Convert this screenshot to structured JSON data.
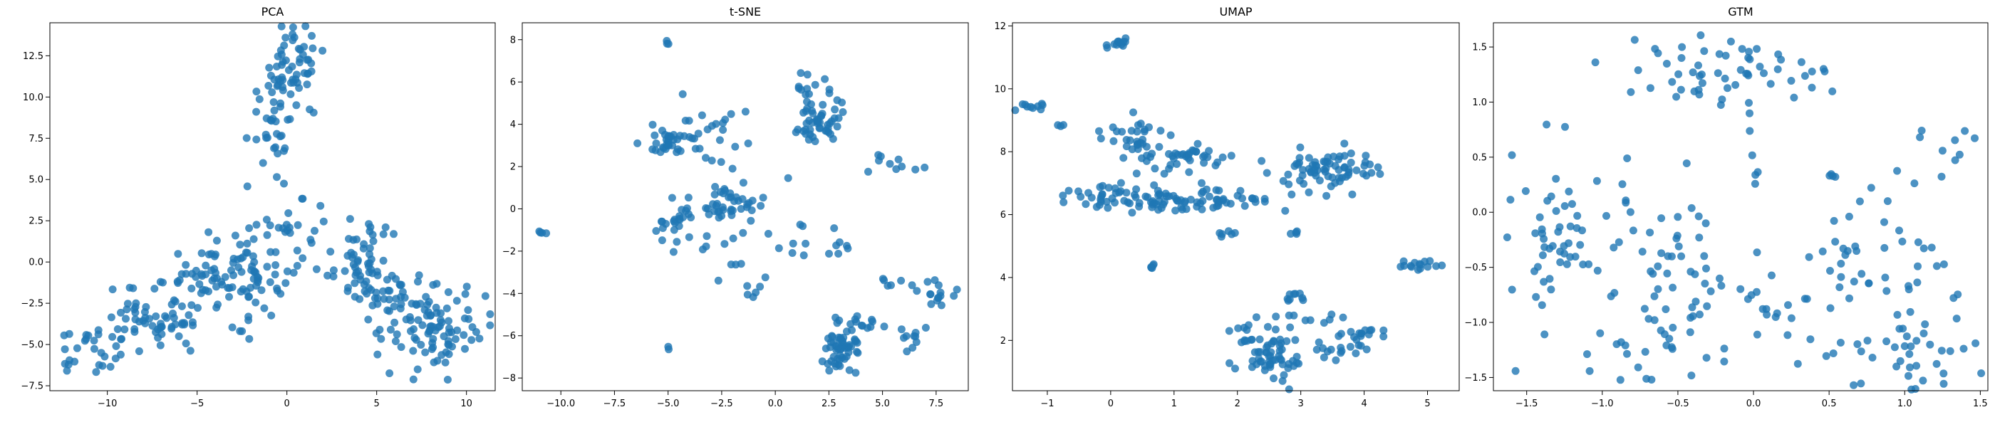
{
  "chart_data": [
    {
      "type": "scatter",
      "title": "PCA",
      "xlabel": "",
      "ylabel": "",
      "xlim": [
        -13.2,
        11.6
      ],
      "ylim": [
        -7.8,
        14.5
      ],
      "xticks": [
        -10,
        -5,
        0,
        5,
        10
      ],
      "yticks": [
        -7.5,
        -5.0,
        -2.5,
        0.0,
        2.5,
        5.0,
        7.5,
        10.0,
        12.5
      ],
      "ytick_labels": [
        "−7.5",
        "−5.0",
        "−2.5",
        "0.0",
        "2.5",
        "5.0",
        "7.5",
        "10.0",
        "12.5"
      ],
      "xtick_labels": [
        "−10",
        "−5",
        "0",
        "5",
        "10"
      ],
      "color": "#1f77b4",
      "clusters": [
        {
          "cx": 0.3,
          "cy": 12.0,
          "sx": 0.9,
          "sy": 1.3,
          "n": 50
        },
        {
          "cx": -0.6,
          "cy": 9.0,
          "sx": 0.8,
          "sy": 1.6,
          "n": 40
        },
        {
          "cx": 0.3,
          "cy": 1.8,
          "sx": 1.0,
          "sy": 1.0,
          "n": 25
        },
        {
          "cx": -3.5,
          "cy": -1.2,
          "sx": 1.6,
          "sy": 1.1,
          "n": 90
        },
        {
          "cx": -7.5,
          "cy": -3.8,
          "sx": 1.6,
          "sy": 1.0,
          "n": 60
        },
        {
          "cx": -11.0,
          "cy": -5.3,
          "sx": 0.8,
          "sy": 0.7,
          "n": 25
        },
        {
          "cx": 4.5,
          "cy": 0.0,
          "sx": 1.3,
          "sy": 1.3,
          "n": 60
        },
        {
          "cx": 8.3,
          "cy": -4.0,
          "sx": 1.4,
          "sy": 1.2,
          "n": 90
        },
        {
          "cx": 6.0,
          "cy": -2.2,
          "sx": 0.9,
          "sy": 0.8,
          "n": 25
        },
        {
          "cx": -1.0,
          "cy": 0.0,
          "sx": 1.5,
          "sy": 0.7,
          "n": 15
        }
      ]
    },
    {
      "type": "scatter",
      "title": "t-SNE",
      "xlabel": "",
      "ylabel": "",
      "xlim": [
        -11.8,
        9.0
      ],
      "ylim": [
        -8.6,
        8.8
      ],
      "xticks": [
        -10.0,
        -7.5,
        -5.0,
        -2.5,
        0.0,
        2.5,
        5.0,
        7.5
      ],
      "xtick_labels": [
        "−10.0",
        "−7.5",
        "−5.0",
        "−2.5",
        "0.0",
        "2.5",
        "5.0",
        "7.5"
      ],
      "yticks": [
        -8,
        -6,
        -4,
        -2,
        0,
        2,
        4,
        6,
        8
      ],
      "ytick_labels": [
        "−8",
        "−6",
        "−4",
        "−2",
        "0",
        "2",
        "4",
        "6",
        "8"
      ],
      "color": "#1f77b4",
      "clusters": [
        {
          "cx": -10.8,
          "cy": -1.15,
          "sx": 0.2,
          "sy": 0.1,
          "n": 4
        },
        {
          "cx": -5.0,
          "cy": 7.9,
          "sx": 0.05,
          "sy": 0.1,
          "n": 3
        },
        {
          "cx": -5.0,
          "cy": 3.2,
          "sx": 0.6,
          "sy": 0.4,
          "n": 30
        },
        {
          "cx": -3.0,
          "cy": 3.5,
          "sx": 1.0,
          "sy": 0.9,
          "n": 25
        },
        {
          "cx": -4.5,
          "cy": -0.8,
          "sx": 0.7,
          "sy": 0.5,
          "n": 25
        },
        {
          "cx": -2.0,
          "cy": 0.2,
          "sx": 0.6,
          "sy": 0.5,
          "n": 35
        },
        {
          "cx": -2.5,
          "cy": -1.8,
          "sx": 1.2,
          "sy": 1.0,
          "n": 15
        },
        {
          "cx": 2.2,
          "cy": 4.1,
          "sx": 0.5,
          "sy": 0.5,
          "n": 45
        },
        {
          "cx": 1.8,
          "cy": 5.5,
          "sx": 0.6,
          "sy": 0.5,
          "n": 15
        },
        {
          "cx": 5.5,
          "cy": 2.1,
          "sx": 0.6,
          "sy": 0.3,
          "n": 10
        },
        {
          "cx": 3.1,
          "cy": -6.5,
          "sx": 0.4,
          "sy": 0.6,
          "n": 55
        },
        {
          "cx": 4.0,
          "cy": -5.5,
          "sx": 0.5,
          "sy": 0.3,
          "n": 12
        },
        {
          "cx": 7.5,
          "cy": -4.0,
          "sx": 0.4,
          "sy": 0.3,
          "n": 15
        },
        {
          "cx": 6.5,
          "cy": -6.0,
          "sx": 0.3,
          "sy": 0.4,
          "n": 10
        },
        {
          "cx": 5.5,
          "cy": -3.5,
          "sx": 0.4,
          "sy": 0.2,
          "n": 6
        },
        {
          "cx": 0.5,
          "cy": -1.5,
          "sx": 1.3,
          "sy": 1.5,
          "n": 12
        },
        {
          "cx": -1.0,
          "cy": -4.0,
          "sx": 0.5,
          "sy": 0.2,
          "n": 4
        },
        {
          "cx": -5.0,
          "cy": -6.6,
          "sx": 0.05,
          "sy": 0.05,
          "n": 2
        },
        {
          "cx": 3.0,
          "cy": -1.8,
          "sx": 0.2,
          "sy": 0.4,
          "n": 6
        }
      ]
    },
    {
      "type": "scatter",
      "title": "UMAP",
      "xlabel": "",
      "ylabel": "",
      "xlim": [
        -1.55,
        5.5
      ],
      "ylim": [
        0.4,
        12.1
      ],
      "xticks": [
        -1,
        0,
        1,
        2,
        3,
        4,
        5
      ],
      "xtick_labels": [
        "−1",
        "0",
        "1",
        "2",
        "3",
        "4",
        "5"
      ],
      "yticks": [
        2,
        4,
        6,
        8,
        10,
        12
      ],
      "ytick_labels": [
        "2",
        "4",
        "6",
        "8",
        "10",
        "12"
      ],
      "color": "#1f77b4",
      "clusters": [
        {
          "cx": 0.1,
          "cy": 11.4,
          "sx": 0.12,
          "sy": 0.08,
          "n": 12
        },
        {
          "cx": -1.2,
          "cy": 9.45,
          "sx": 0.12,
          "sy": 0.08,
          "n": 10
        },
        {
          "cx": -0.8,
          "cy": 8.85,
          "sx": 0.03,
          "sy": 0.03,
          "n": 3
        },
        {
          "cx": 0.3,
          "cy": 8.3,
          "sx": 0.25,
          "sy": 0.35,
          "n": 35
        },
        {
          "cx": -0.1,
          "cy": 6.6,
          "sx": 0.35,
          "sy": 0.2,
          "n": 35
        },
        {
          "cx": 1.3,
          "cy": 6.4,
          "sx": 0.55,
          "sy": 0.2,
          "n": 70
        },
        {
          "cx": 1.2,
          "cy": 7.8,
          "sx": 0.4,
          "sy": 0.3,
          "n": 35
        },
        {
          "cx": 0.65,
          "cy": 4.4,
          "sx": 0.05,
          "sy": 0.05,
          "n": 5
        },
        {
          "cx": 1.85,
          "cy": 5.4,
          "sx": 0.1,
          "sy": 0.1,
          "n": 6
        },
        {
          "cx": 3.4,
          "cy": 7.4,
          "sx": 0.4,
          "sy": 0.35,
          "n": 70
        },
        {
          "cx": 2.9,
          "cy": 5.4,
          "sx": 0.06,
          "sy": 0.06,
          "n": 4
        },
        {
          "cx": 2.5,
          "cy": 1.6,
          "sx": 0.3,
          "sy": 0.6,
          "n": 70
        },
        {
          "cx": 2.85,
          "cy": 3.4,
          "sx": 0.15,
          "sy": 0.3,
          "n": 10
        },
        {
          "cx": 3.5,
          "cy": 1.7,
          "sx": 0.25,
          "sy": 0.15,
          "n": 15
        },
        {
          "cx": 4.0,
          "cy": 2.2,
          "sx": 0.25,
          "sy": 0.12,
          "n": 15
        },
        {
          "cx": 3.4,
          "cy": 2.6,
          "sx": 0.2,
          "sy": 0.1,
          "n": 6
        },
        {
          "cx": 4.9,
          "cy": 4.4,
          "sx": 0.2,
          "sy": 0.07,
          "n": 15
        }
      ]
    },
    {
      "type": "scatter",
      "title": "GTM",
      "xlabel": "",
      "ylabel": "",
      "xlim": [
        -1.72,
        1.55
      ],
      "ylim": [
        -1.62,
        1.72
      ],
      "xticks": [
        -1.5,
        -1.0,
        -0.5,
        0.0,
        0.5,
        1.0,
        1.5
      ],
      "xtick_labels": [
        "−1.5",
        "−1.0",
        "−0.5",
        "0.0",
        "0.5",
        "1.0",
        "1.5"
      ],
      "yticks": [
        -1.5,
        -1.0,
        -0.5,
        0.0,
        0.5,
        1.0,
        1.5
      ],
      "ytick_labels": [
        "−1.5",
        "−1.0",
        "−0.5",
        "0.0",
        "0.5",
        "1.0",
        "1.5"
      ],
      "color": "#1f77b4",
      "clusters": [
        {
          "cx": -0.25,
          "cy": 1.25,
          "sx": 0.35,
          "sy": 0.17,
          "n": 55
        },
        {
          "cx": -1.3,
          "cy": -0.35,
          "sx": 0.15,
          "sy": 0.35,
          "n": 45
        },
        {
          "cx": -1.0,
          "cy": 0.0,
          "sx": 0.2,
          "sy": 0.3,
          "n": 15
        },
        {
          "cx": -0.5,
          "cy": -0.3,
          "sx": 0.15,
          "sy": 0.3,
          "n": 25
        },
        {
          "cx": -0.7,
          "cy": -1.1,
          "sx": 0.25,
          "sy": 0.25,
          "n": 35
        },
        {
          "cx": -0.1,
          "cy": -0.7,
          "sx": 0.25,
          "sy": 0.3,
          "n": 15
        },
        {
          "cx": 0.3,
          "cy": -1.0,
          "sx": 0.2,
          "sy": 0.3,
          "n": 12
        },
        {
          "cx": 0.9,
          "cy": -0.5,
          "sx": 0.3,
          "sy": 0.5,
          "n": 60
        },
        {
          "cx": 1.0,
          "cy": -1.3,
          "sx": 0.3,
          "sy": 0.15,
          "n": 25
        },
        {
          "cx": 1.2,
          "cy": 0.6,
          "sx": 0.2,
          "sy": 0.25,
          "n": 10
        },
        {
          "cx": 0.4,
          "cy": 1.3,
          "sx": 0.05,
          "sy": 0.05,
          "n": 4
        },
        {
          "cx": 0.0,
          "cy": 0.4,
          "sx": 0.03,
          "sy": 0.15,
          "n": 5
        },
        {
          "cx": 0.5,
          "cy": 0.3,
          "sx": 0.03,
          "sy": 0.03,
          "n": 2
        }
      ]
    }
  ]
}
